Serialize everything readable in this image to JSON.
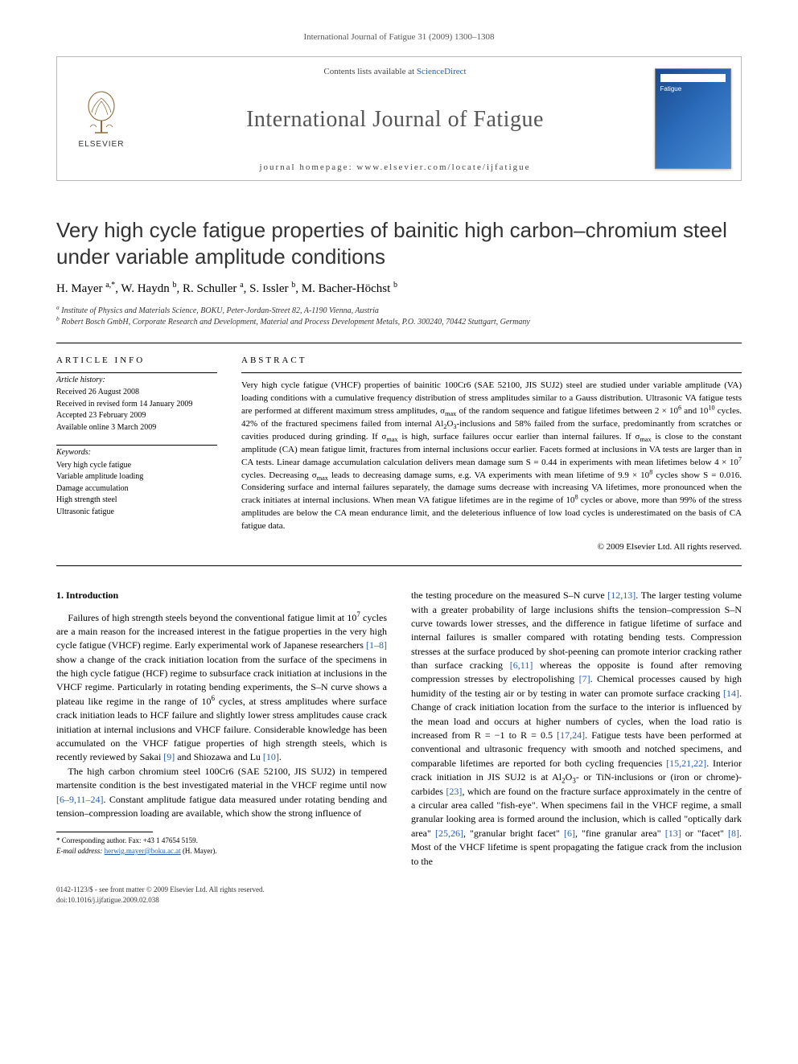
{
  "running_head": "International Journal of Fatigue 31 (2009) 1300–1308",
  "banner": {
    "contents_prefix": "Contents lists available at ",
    "contents_link": "ScienceDirect",
    "journal_name": "International Journal of Fatigue",
    "homepage_label": "journal homepage: www.elsevier.com/locate/ijfatigue",
    "publisher_label": "ELSEVIER",
    "cover_label": "Fatigue"
  },
  "title": "Very high cycle fatigue properties of bainitic high carbon–chromium steel under variable amplitude conditions",
  "authors_html": "H. Mayer <sup>a,*</sup>, W. Haydn <sup>b</sup>, R. Schuller <sup>a</sup>, S. Issler <sup>b</sup>, M. Bacher-Höchst <sup>b</sup>",
  "affiliations": [
    "a Institute of Physics and Materials Science, BOKU, Peter-Jordan-Street 82, A-1190 Vienna, Austria",
    "b Robert Bosch GmbH, Corporate Research and Development, Material and Process Development Metals, P.O. 300240, 70442 Stuttgart, Germany"
  ],
  "info": {
    "heading": "ARTICLE INFO",
    "history_label": "Article history:",
    "history": [
      "Received 26 August 2008",
      "Received in revised form 14 January 2009",
      "Accepted 23 February 2009",
      "Available online 3 March 2009"
    ],
    "keywords_label": "Keywords:",
    "keywords": [
      "Very high cycle fatigue",
      "Variable amplitude loading",
      "Damage accumulation",
      "High strength steel",
      "Ultrasonic fatigue"
    ]
  },
  "abstract": {
    "heading": "ABSTRACT",
    "text_html": "Very high cycle fatigue (VHCF) properties of bainitic 100Cr6 (SAE 52100, JIS SUJ2) steel are studied under variable amplitude (VA) loading conditions with a cumulative frequency distribution of stress amplitudes similar to a Gauss distribution. Ultrasonic VA fatigue tests are performed at different maximum stress amplitudes, σ<sub>max</sub> of the random sequence and fatigue lifetimes between 2 × 10<sup>6</sup> and 10<sup>10</sup> cycles. 42% of the fractured specimens failed from internal Al<sub>2</sub>O<sub>3</sub>-inclusions and 58% failed from the surface, predominantly from scratches or cavities produced during grinding. If σ<sub>max</sub> is high, surface failures occur earlier than internal failures. If σ<sub>max</sub> is close to the constant amplitude (CA) mean fatigue limit, fractures from internal inclusions occur earlier. Facets formed at inclusions in VA tests are larger than in CA tests. Linear damage accumulation calculation delivers mean damage sum S = 0.44 in experiments with mean lifetimes below 4 × 10<sup>7</sup> cycles. Decreasing σ<sub>max</sub> leads to decreasing damage sums, e.g. VA experiments with mean lifetime of 9.9 × 10<sup>8</sup> cycles show S = 0.016. Considering surface and internal failures separately, the damage sums decrease with increasing VA lifetimes, more pronounced when the crack initiates at internal inclusions. When mean VA fatigue lifetimes are in the regime of 10<sup>8</sup> cycles or above, more than 99% of the stress amplitudes are below the CA mean endurance limit, and the deleterious influence of low load cycles is underestimated on the basis of CA fatigue data.",
    "copyright": "© 2009 Elsevier Ltd. All rights reserved."
  },
  "section1": {
    "heading": "1. Introduction",
    "p1_html": "Failures of high strength steels beyond the conventional fatigue limit at 10<sup>7</sup> cycles are a main reason for the increased interest in the fatigue properties in the very high cycle fatigue (VHCF) regime. Early experimental work of Japanese researchers <span class=\"ref\">[1–8]</span> show a change of the crack initiation location from the surface of the specimens in the high cycle fatigue (HCF) regime to subsurface crack initiation at inclusions in the VHCF regime. Particularly in rotating bending experiments, the S–N curve shows a plateau like regime in the range of 10<sup>6</sup> cycles, at stress amplitudes where surface crack initiation leads to HCF failure and slightly lower stress amplitudes cause crack initiation at internal inclusions and VHCF failure. Considerable knowledge has been accumulated on the VHCF fatigue properties of high strength steels, which is recently reviewed by Sakai <span class=\"ref\">[9]</span> and Shiozawa and Lu <span class=\"ref\">[10]</span>.",
    "p2_html": "The high carbon chromium steel 100Cr6 (SAE 52100, JIS SUJ2) in tempered martensite condition is the best investigated material in the VHCF regime until now <span class=\"ref\">[6–9,11–24]</span>. Constant amplitude fatigue data measured under rotating bending and tension–compression loading are available, which show the strong influence of",
    "p3_html": "the testing procedure on the measured S–N curve <span class=\"ref\">[12,13]</span>. The larger testing volume with a greater probability of large inclusions shifts the tension–compression S–N curve towards lower stresses, and the difference in fatigue lifetime of surface and internal failures is smaller compared with rotating bending tests. Compression stresses at the surface produced by shot-peening can promote interior cracking rather than surface cracking <span class=\"ref\">[6,11]</span> whereas the opposite is found after removing compression stresses by electropolishing <span class=\"ref\">[7]</span>. Chemical processes caused by high humidity of the testing air or by testing in water can promote surface cracking <span class=\"ref\">[14]</span>. Change of crack initiation location from the surface to the interior is influenced by the mean load and occurs at higher numbers of cycles, when the load ratio is increased from R = −1 to R = 0.5 <span class=\"ref\">[17,24]</span>. Fatigue tests have been performed at conventional and ultrasonic frequency with smooth and notched specimens, and comparable lifetimes are reported for both cycling frequencies <span class=\"ref\">[15,21,22]</span>. Interior crack initiation in JIS SUJ2 is at Al<sub>2</sub>O<sub>3</sub>- or TiN-inclusions or (iron or chrome)-carbides <span class=\"ref\">[23]</span>, which are found on the fracture surface approximately in the centre of a circular area called \"fish-eye\". When specimens fail in the VHCF regime, a small granular looking area is formed around the inclusion, which is called \"optically dark area\" <span class=\"ref\">[25,26]</span>, \"granular bright facet\" <span class=\"ref\">[6]</span>, \"fine granular area\" <span class=\"ref\">[13]</span> or \"facet\" <span class=\"ref\">[8]</span>. Most of the VHCF lifetime is spent propagating the fatigue crack from the inclusion to the"
  },
  "footnote": {
    "corr": "* Corresponding author. Fax: +43 1 47654 5159.",
    "email_label": "E-mail address:",
    "email": "herwig.mayer@boku.ac.at",
    "email_who": "(H. Mayer)."
  },
  "footer": {
    "line1": "0142-1123/$ - see front matter © 2009 Elsevier Ltd. All rights reserved.",
    "line2": "doi:10.1016/j.ijfatigue.2009.02.038"
  },
  "colors": {
    "ref_color": "#2a5db0",
    "text_color": "#000000",
    "muted": "#555555",
    "border": "#b8b8b8"
  }
}
